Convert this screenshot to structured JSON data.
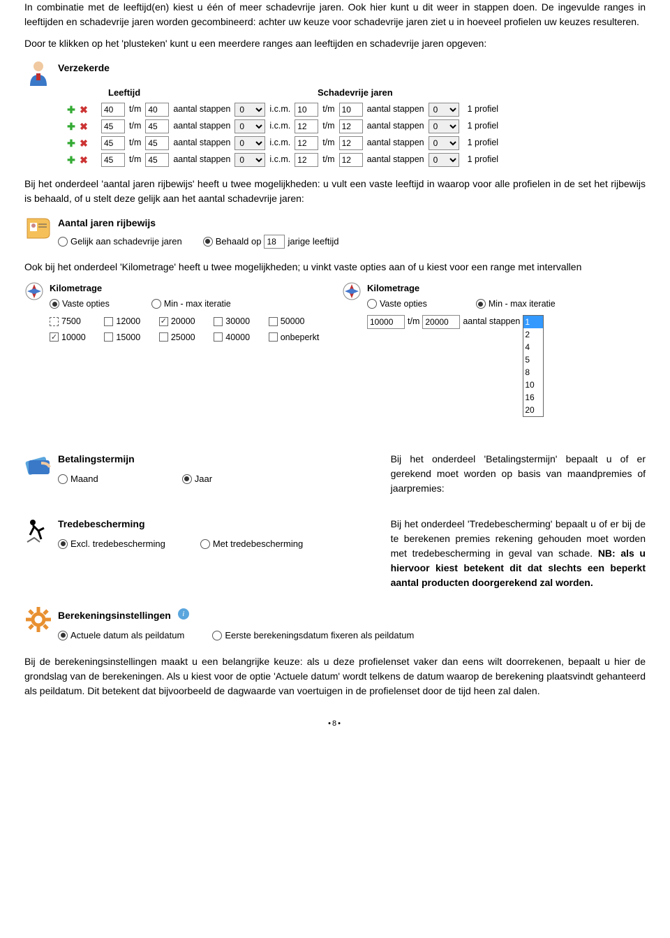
{
  "intro": {
    "p1": "In combinatie met de leeftijd(en) kiest u één of meer schadevrije jaren. Ook hier kunt u dit weer in stappen doen. De ingevulde ranges in leeftijden en schadevrije jaren worden gecombineerd: achter uw keuze voor schadevrije jaren ziet u in hoeveel profielen uw keuzes resulteren.",
    "p2": "Door te klikken op het 'plusteken' kunt u een meerdere ranges aan leeftijden en schadevrije jaren opgeven:"
  },
  "verzekerde": {
    "title": "Verzekerde",
    "col_leeftijd": "Leeftijd",
    "col_svj": "Schadevrije jaren",
    "tm": "t/m",
    "stappen": "aantal stappen",
    "icm": "i.c.m.",
    "result": "1 profiel",
    "rows": [
      {
        "l_from": "40",
        "l_to": "40",
        "l_step": "0",
        "s_from": "10",
        "s_to": "10",
        "s_step": "0"
      },
      {
        "l_from": "45",
        "l_to": "45",
        "l_step": "0",
        "s_from": "12",
        "s_to": "12",
        "s_step": "0"
      },
      {
        "l_from": "45",
        "l_to": "45",
        "l_step": "0",
        "s_from": "12",
        "s_to": "12",
        "s_step": "0"
      },
      {
        "l_from": "45",
        "l_to": "45",
        "l_step": "0",
        "s_from": "12",
        "s_to": "12",
        "s_step": "0"
      }
    ]
  },
  "p3": "Bij het onderdeel 'aantal jaren rijbewijs' heeft u twee mogelijkheden: u vult een vaste leeftijd in waarop voor alle profielen in de set het rijbewijs is behaald, of u stelt deze gelijk aan het aantal schadevrije jaren:",
  "rijbewijs": {
    "title": "Aantal jaren rijbewijs",
    "opt1": "Gelijk aan schadevrije jaren",
    "opt2_pre": "Behaald op",
    "opt2_val": "18",
    "opt2_post": "jarige leeftijd"
  },
  "p4": "Ook bij het onderdeel 'Kilometrage' heeft u twee mogelijkheden; u vinkt vaste opties aan of u kiest voor een range met intervallen",
  "km": {
    "title": "Kilometrage",
    "opt_vaste": "Vaste opties",
    "opt_minmax": "Min - max iteratie",
    "vals": [
      "7500",
      "12000",
      "20000",
      "30000",
      "50000",
      "10000",
      "15000",
      "25000",
      "40000",
      "onbeperkt"
    ],
    "checked_idx": [
      2,
      5
    ],
    "dashed_idx": [
      0
    ],
    "right_from": "10000",
    "right_to": "20000",
    "stappen": "aantal stappen",
    "tm": "t/m",
    "list": [
      "1",
      "2",
      "4",
      "5",
      "8",
      "10",
      "16",
      "20"
    ]
  },
  "bet": {
    "title": "Betalingstermijn",
    "opt1": "Maand",
    "opt2": "Jaar",
    "txt": "Bij het onderdeel 'Betalingstermijn' bepaalt u of er gerekend moet worden op basis van maandpremies of jaarpremies:"
  },
  "trede": {
    "title": "Tredebescherming",
    "opt1": "Excl. tredebescherming",
    "opt2": "Met tredebescherming",
    "txt": "Bij het onderdeel 'Tredebescherming' bepaalt u of er bij de te berekenen premies rekening gehouden moet worden met tredebescherming in geval van schade. ",
    "txt_bold": "NB: als u hiervoor kiest betekent dit dat slechts een beperkt aantal producten doorgerekend zal worden."
  },
  "ber": {
    "title": "Berekeningsinstellingen",
    "opt1": "Actuele datum als peildatum",
    "opt2": "Eerste berekeningsdatum fixeren als peildatum"
  },
  "p5": "Bij de berekeningsinstellingen maakt u een belangrijke keuze: als u deze profielenset vaker dan eens wilt doorrekenen, bepaalt u hier de grondslag van de berekeningen. Als u kiest voor de optie 'Actuele datum' wordt telkens de datum waarop de berekening plaatsvindt gehanteerd als peildatum. Dit betekent dat bijvoorbeeld de dagwaarde van voertuigen in de profielenset door de tijd heen zal dalen.",
  "page_num": "8"
}
